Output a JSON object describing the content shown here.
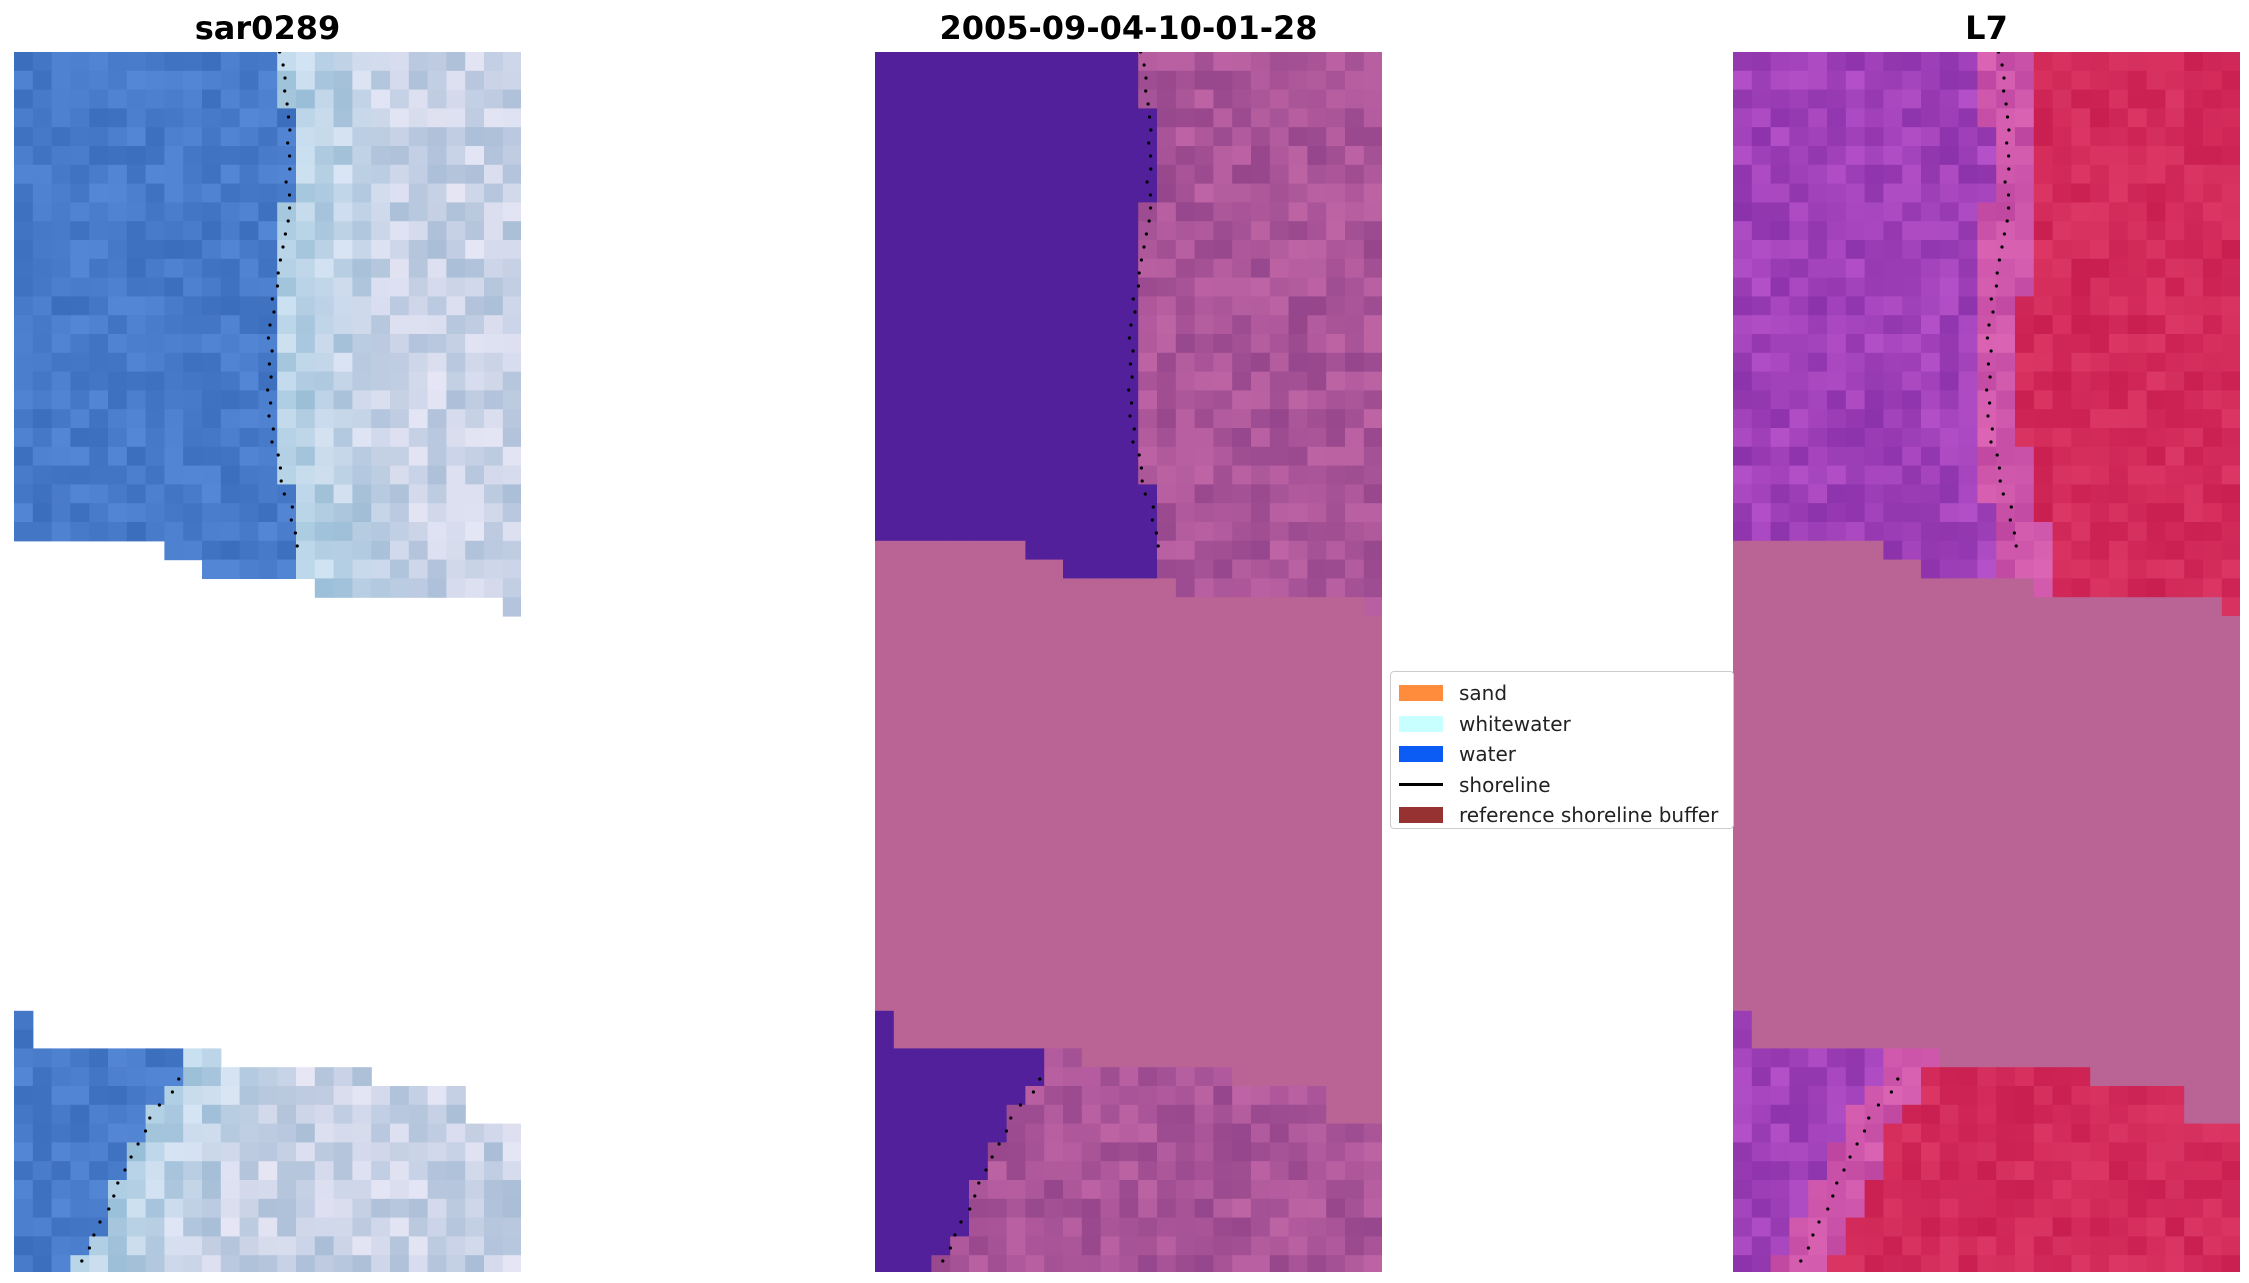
{
  "panels": [
    {
      "title": "sar0289",
      "palette": "rgb"
    },
    {
      "title": "2005-09-04-10-01-28",
      "palette": "classified"
    },
    {
      "title": "L7",
      "palette": "index"
    }
  ],
  "legend": {
    "items": [
      {
        "label": "sand",
        "color": "#ff8c3c",
        "kind": "patch"
      },
      {
        "label": "whitewater",
        "color": "#c8ffff",
        "kind": "patch"
      },
      {
        "label": "water",
        "color": "#0a5cf5",
        "kind": "patch"
      },
      {
        "label": "shoreline",
        "color": "#000000",
        "kind": "line"
      },
      {
        "label": "reference shoreline buffer",
        "color": "#963232",
        "kind": "patch"
      }
    ]
  }
}
